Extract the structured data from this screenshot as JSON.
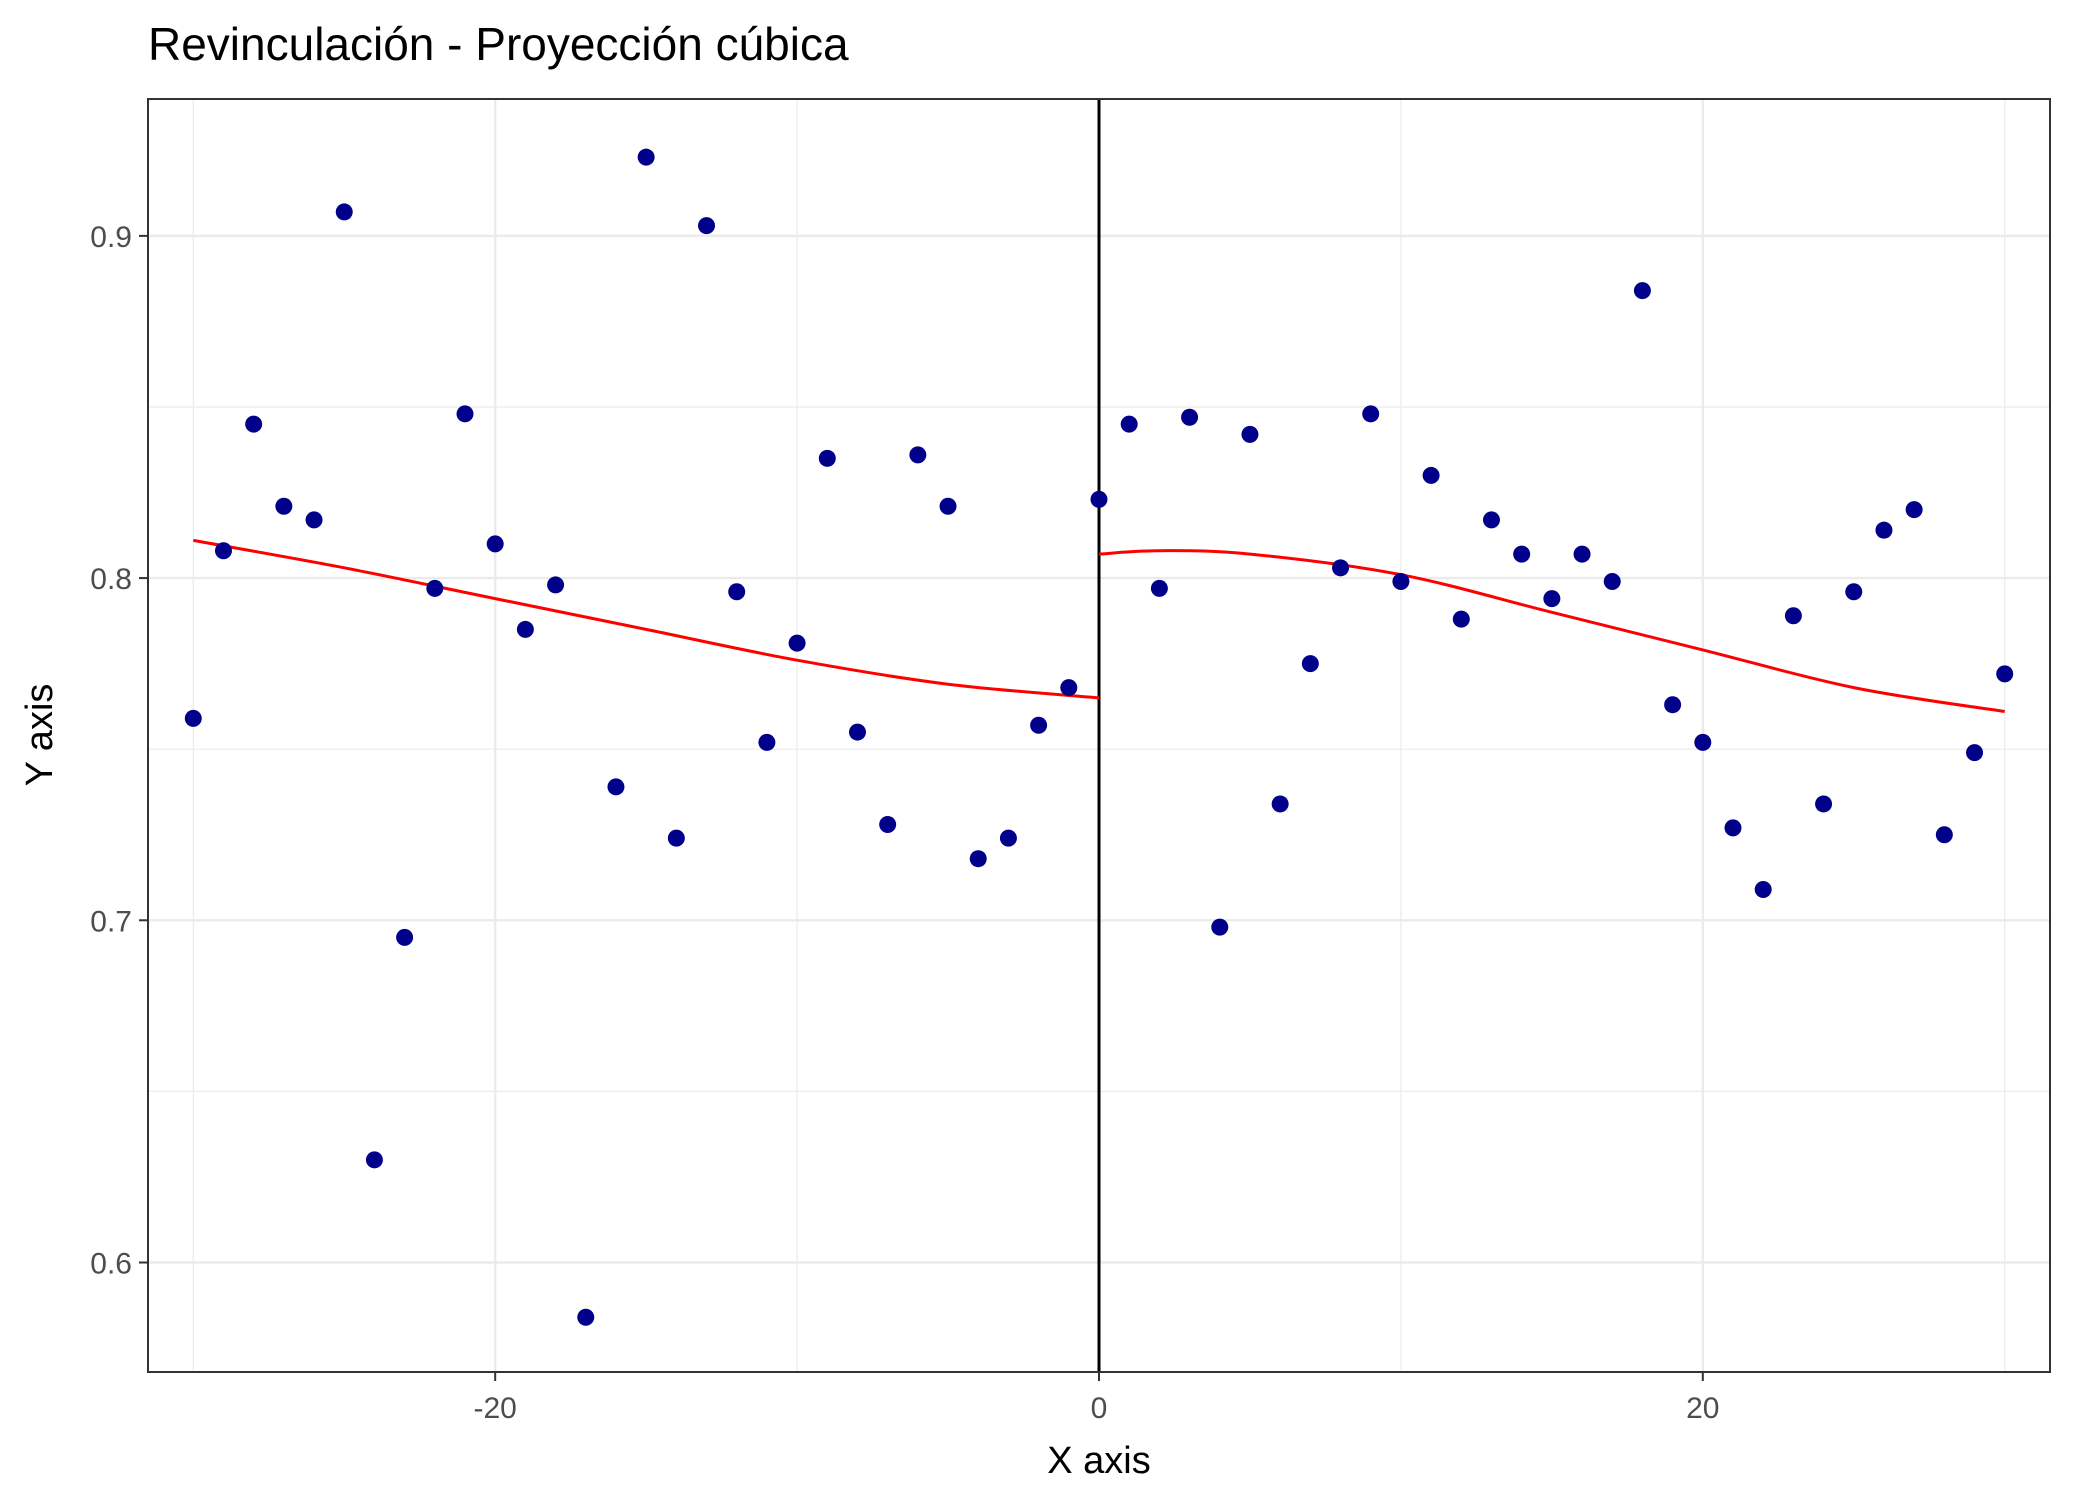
{
  "chart_data": {
    "type": "scatter",
    "title": "Revinculación - Proyección cúbica",
    "xlabel": "X axis",
    "ylabel": "Y axis",
    "xlim": [
      -31.5,
      31.5
    ],
    "ylim": [
      0.568,
      0.94
    ],
    "x_ticks": [
      {
        "value": -20,
        "label": "-20"
      },
      {
        "value": 0,
        "label": "0"
      },
      {
        "value": 20,
        "label": "20"
      }
    ],
    "y_ticks": [
      {
        "value": 0.6,
        "label": "0.6"
      },
      {
        "value": 0.7,
        "label": "0.7"
      },
      {
        "value": 0.8,
        "label": "0.8"
      },
      {
        "value": 0.9,
        "label": "0.9"
      }
    ],
    "x_minor_ticks": [
      -30,
      -10,
      10,
      30
    ],
    "y_minor_ticks": [
      0.65,
      0.75,
      0.85
    ],
    "grid": true,
    "legend": "none",
    "cutoff_line_x": 0,
    "colors": {
      "points": "#00008b",
      "fit": "#ff0000",
      "cutoff": "#000000",
      "grid": "#ebebeb",
      "panel_border": "#333333"
    },
    "points": [
      {
        "x": -30,
        "y": 0.759
      },
      {
        "x": -29,
        "y": 0.808
      },
      {
        "x": -28,
        "y": 0.845
      },
      {
        "x": -27,
        "y": 0.821
      },
      {
        "x": -26,
        "y": 0.817
      },
      {
        "x": -25,
        "y": 0.907
      },
      {
        "x": -24,
        "y": 0.63
      },
      {
        "x": -23,
        "y": 0.695
      },
      {
        "x": -22,
        "y": 0.797
      },
      {
        "x": -21,
        "y": 0.848
      },
      {
        "x": -20,
        "y": 0.81
      },
      {
        "x": -19,
        "y": 0.785
      },
      {
        "x": -18,
        "y": 0.798
      },
      {
        "x": -17,
        "y": 0.584
      },
      {
        "x": -16,
        "y": 0.739
      },
      {
        "x": -15,
        "y": 0.923
      },
      {
        "x": -14,
        "y": 0.724
      },
      {
        "x": -13,
        "y": 0.903
      },
      {
        "x": -12,
        "y": 0.796
      },
      {
        "x": -11,
        "y": 0.752
      },
      {
        "x": -10,
        "y": 0.781
      },
      {
        "x": -9,
        "y": 0.835
      },
      {
        "x": -8,
        "y": 0.755
      },
      {
        "x": -7,
        "y": 0.728
      },
      {
        "x": -6,
        "y": 0.836
      },
      {
        "x": -5,
        "y": 0.821
      },
      {
        "x": -4,
        "y": 0.718
      },
      {
        "x": -3,
        "y": 0.724
      },
      {
        "x": -2,
        "y": 0.757
      },
      {
        "x": -1,
        "y": 0.768
      },
      {
        "x": 0,
        "y": 0.823
      },
      {
        "x": 1,
        "y": 0.845
      },
      {
        "x": 2,
        "y": 0.797
      },
      {
        "x": 3,
        "y": 0.847
      },
      {
        "x": 4,
        "y": 0.698
      },
      {
        "x": 5,
        "y": 0.842
      },
      {
        "x": 6,
        "y": 0.734
      },
      {
        "x": 7,
        "y": 0.775
      },
      {
        "x": 8,
        "y": 0.803
      },
      {
        "x": 9,
        "y": 0.848
      },
      {
        "x": 10,
        "y": 0.799
      },
      {
        "x": 11,
        "y": 0.83
      },
      {
        "x": 12,
        "y": 0.788
      },
      {
        "x": 13,
        "y": 0.817
      },
      {
        "x": 14,
        "y": 0.807
      },
      {
        "x": 15,
        "y": 0.794
      },
      {
        "x": 16,
        "y": 0.807
      },
      {
        "x": 17,
        "y": 0.799
      },
      {
        "x": 18,
        "y": 0.884
      },
      {
        "x": 19,
        "y": 0.763
      },
      {
        "x": 20,
        "y": 0.752
      },
      {
        "x": 21,
        "y": 0.727
      },
      {
        "x": 22,
        "y": 0.709
      },
      {
        "x": 23,
        "y": 0.789
      },
      {
        "x": 24,
        "y": 0.734
      },
      {
        "x": 25,
        "y": 0.796
      },
      {
        "x": 26,
        "y": 0.814
      },
      {
        "x": 27,
        "y": 0.82
      },
      {
        "x": 28,
        "y": 0.725
      },
      {
        "x": 29,
        "y": 0.749
      },
      {
        "x": 30,
        "y": 0.772
      }
    ],
    "fit_left": [
      {
        "x": -30,
        "y": 0.811
      },
      {
        "x": -25,
        "y": 0.803
      },
      {
        "x": -20,
        "y": 0.794
      },
      {
        "x": -15,
        "y": 0.785
      },
      {
        "x": -10,
        "y": 0.776
      },
      {
        "x": -5,
        "y": 0.769
      },
      {
        "x": 0,
        "y": 0.765
      }
    ],
    "fit_right": [
      {
        "x": 0,
        "y": 0.807
      },
      {
        "x": 2,
        "y": 0.808
      },
      {
        "x": 5,
        "y": 0.807
      },
      {
        "x": 10,
        "y": 0.801
      },
      {
        "x": 15,
        "y": 0.79
      },
      {
        "x": 20,
        "y": 0.779
      },
      {
        "x": 25,
        "y": 0.768
      },
      {
        "x": 30,
        "y": 0.761
      }
    ]
  }
}
